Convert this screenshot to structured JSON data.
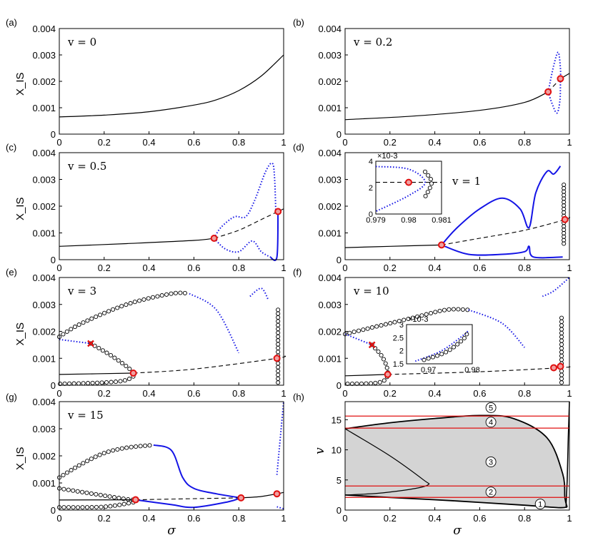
{
  "chart_data": [
    {
      "id": "a",
      "type": "line",
      "tag": "(a)",
      "param": "v = 0",
      "ylabel": "X_IS",
      "xlim": [
        0,
        1
      ],
      "ylim": [
        0,
        0.004
      ],
      "xticks": [
        "0",
        "0.2",
        "0.4",
        "0.6",
        "0.8",
        "1"
      ],
      "yticks": [
        "0",
        "0.001",
        "0.002",
        "0.003",
        "0.004"
      ],
      "stable": [
        [
          0,
          0.00065
        ],
        [
          0.2,
          0.00072
        ],
        [
          0.4,
          0.00085
        ],
        [
          0.6,
          0.0011
        ],
        [
          0.7,
          0.0013
        ],
        [
          0.8,
          0.00165
        ],
        [
          0.9,
          0.0022
        ],
        [
          1,
          0.003
        ]
      ]
    },
    {
      "id": "b",
      "type": "line",
      "tag": "(b)",
      "param": "v = 0.2",
      "ylabel": "",
      "xlim": [
        0,
        1
      ],
      "ylim": [
        0,
        0.004
      ],
      "xticks": [
        "0",
        "0.2",
        "0.4",
        "0.6",
        "0.8",
        "1"
      ],
      "yticks": [
        "0",
        "0.001",
        "0.002",
        "0.003",
        "0.004"
      ],
      "stable": [
        [
          0,
          0.00055
        ],
        [
          0.3,
          0.00068
        ],
        [
          0.6,
          0.0009
        ],
        [
          0.8,
          0.0012
        ],
        [
          0.905,
          0.0016
        ]
      ],
      "unstable": [
        [
          0.905,
          0.0016
        ],
        [
          0.96,
          0.0021
        ]
      ],
      "stable2": [
        [
          0.96,
          0.0021
        ],
        [
          1,
          0.0023
        ]
      ],
      "hopf": [
        [
          0.905,
          0.0016
        ],
        [
          0.96,
          0.0021
        ]
      ],
      "blue_dotted": [
        [
          [
            0.905,
            0.0016
          ],
          [
            0.93,
            0.0026
          ],
          [
            0.95,
            0.0031
          ],
          [
            0.96,
            0.0025
          ],
          [
            0.96,
            0.0021
          ]
        ],
        [
          [
            0.905,
            0.0016
          ],
          [
            0.925,
            0.0011
          ],
          [
            0.945,
            0.0008
          ],
          [
            0.958,
            0.0013
          ],
          [
            0.96,
            0.0021
          ]
        ]
      ]
    },
    {
      "id": "c",
      "type": "line",
      "tag": "(c)",
      "param": "v = 0.5",
      "ylabel": "X_IS",
      "xlim": [
        0,
        1
      ],
      "ylim": [
        0,
        0.004
      ],
      "xticks": [
        "0",
        "0.2",
        "0.4",
        "0.6",
        "0.8",
        "1"
      ],
      "yticks": [
        "0",
        "0.001",
        "0.002",
        "0.003",
        "0.004"
      ],
      "stable": [
        [
          0,
          0.0005
        ],
        [
          0.3,
          0.0006
        ],
        [
          0.6,
          0.00072
        ],
        [
          0.69,
          0.0008
        ]
      ],
      "unstable": [
        [
          0.69,
          0.0008
        ],
        [
          0.8,
          0.0011
        ],
        [
          0.9,
          0.0015
        ],
        [
          0.975,
          0.0018
        ],
        [
          1,
          0.0019
        ]
      ],
      "hopf": [
        [
          0.69,
          0.0008
        ],
        [
          0.975,
          0.0018
        ]
      ],
      "blue_dotted": [
        [
          [
            0.69,
            0.0008
          ],
          [
            0.72,
            0.0012
          ],
          [
            0.78,
            0.0016
          ],
          [
            0.83,
            0.0016
          ],
          [
            0.87,
            0.0022
          ],
          [
            0.92,
            0.0033
          ],
          [
            0.95,
            0.0036
          ],
          [
            0.96,
            0.003
          ],
          [
            0.965,
            0.0018
          ]
        ],
        [
          [
            0.69,
            0.0008
          ],
          [
            0.74,
            0.0004
          ],
          [
            0.8,
            0.0003
          ],
          [
            0.86,
            0.0007
          ],
          [
            0.9,
            0.0003
          ],
          [
            0.94,
            0.0001
          ]
        ]
      ],
      "blue_solid": [
        [
          [
            0.94,
            0.0001
          ],
          [
            0.97,
            0.0001
          ],
          [
            0.975,
            0.0018
          ]
        ]
      ]
    },
    {
      "id": "d",
      "type": "line",
      "tag": "(d)",
      "param": "v = 1",
      "ylabel": "",
      "xlim": [
        0,
        1
      ],
      "ylim": [
        0,
        0.004
      ],
      "xticks": [
        "0",
        "0.2",
        "0.4",
        "0.6",
        "0.8",
        "1"
      ],
      "yticks": [
        "0",
        "0.001",
        "0.002",
        "0.003",
        "0.004"
      ],
      "stable": [
        [
          0,
          0.00045
        ],
        [
          0.2,
          0.0005
        ],
        [
          0.43,
          0.00055
        ]
      ],
      "unstable": [
        [
          0.43,
          0.00055
        ],
        [
          0.6,
          0.0008
        ],
        [
          0.8,
          0.0011
        ],
        [
          0.98,
          0.0015
        ],
        [
          1,
          0.0016
        ]
      ],
      "hopf": [
        [
          0.43,
          0.00055
        ],
        [
          0.98,
          0.0015
        ]
      ],
      "blue_solid": [
        [
          [
            0.43,
            0.00055
          ],
          [
            0.5,
            0.0012
          ],
          [
            0.6,
            0.0019
          ],
          [
            0.7,
            0.0023
          ],
          [
            0.78,
            0.0019
          ],
          [
            0.82,
            0.0012
          ],
          [
            0.85,
            0.0025
          ],
          [
            0.9,
            0.0033
          ],
          [
            0.93,
            0.0032
          ],
          [
            0.96,
            0.0035
          ]
        ],
        [
          [
            0.43,
            0.00055
          ],
          [
            0.55,
            0.0002
          ],
          [
            0.7,
            0.0002
          ],
          [
            0.8,
            0.0003
          ],
          [
            0.82,
            0.0005
          ],
          [
            0.84,
            0.0001
          ],
          [
            0.97,
            0.0001
          ]
        ]
      ],
      "circles": {
        "x": 0.975,
        "ymin": 0.0006,
        "ymax": 0.0028,
        "count": 18
      },
      "inset": {
        "xlim": [
          0.979,
          0.981
        ],
        "ylim": [
          0,
          4
        ],
        "xticks": [
          "0.979",
          "0.98",
          "0.981"
        ],
        "yticks": [
          "0",
          "2",
          "4"
        ],
        "exponent": "×10-3"
      }
    },
    {
      "id": "e",
      "type": "line",
      "tag": "(e)",
      "param": "v = 3",
      "ylabel": "X_IS",
      "xlim": [
        0,
        1
      ],
      "ylim": [
        0,
        0.004
      ],
      "xticks": [
        "0",
        "0.2",
        "0.4",
        "0.6",
        "0.8",
        "1"
      ],
      "yticks": [
        "0",
        "0.001",
        "0.002",
        "0.003",
        "0.004"
      ],
      "stable": [
        [
          0,
          0.0004
        ],
        [
          0.33,
          0.00045
        ]
      ],
      "unstable": [
        [
          0.33,
          0.00045
        ],
        [
          0.6,
          0.0006
        ],
        [
          0.97,
          0.001
        ],
        [
          1,
          0.0011
        ]
      ],
      "hopf": [
        [
          0.33,
          0.00045
        ],
        [
          0.97,
          0.001
        ]
      ],
      "redx": [
        [
          0.14,
          0.00155
        ]
      ],
      "circle_arcs": [
        [
          [
            0,
            0.0018
          ],
          [
            0.1,
            0.0023
          ],
          [
            0.3,
            0.003
          ],
          [
            0.5,
            0.0034
          ],
          [
            0.58,
            0.0034
          ]
        ],
        [
          [
            0.14,
            0.00155
          ],
          [
            0.25,
            0.001
          ],
          [
            0.33,
            0.00045
          ],
          [
            0.3,
            0.0002
          ],
          [
            0.2,
            0.0001
          ],
          [
            0,
            5e-05
          ]
        ]
      ],
      "blue_dotted": [
        [
          [
            0,
            0.0017
          ],
          [
            0.14,
            0.00155
          ]
        ],
        [
          [
            0.58,
            0.0034
          ],
          [
            0.7,
            0.0028
          ],
          [
            0.8,
            0.0012
          ]
        ],
        [
          [
            0.85,
            0.0033
          ],
          [
            0.9,
            0.0036
          ],
          [
            0.93,
            0.0032
          ]
        ]
      ],
      "circles": {
        "x": 0.975,
        "ymin": 0.0001,
        "ymax": 0.0028,
        "count": 20
      }
    },
    {
      "id": "f",
      "type": "line",
      "tag": "(f)",
      "param": "v = 10",
      "ylabel": "",
      "xlim": [
        0,
        1
      ],
      "ylim": [
        0,
        0.004
      ],
      "xticks": [
        "0",
        "0.2",
        "0.4",
        "0.6",
        "0.8",
        "1"
      ],
      "yticks": [
        "0",
        "0.001",
        "0.002",
        "0.003",
        "0.004"
      ],
      "stable": [
        [
          0,
          0.00035
        ],
        [
          0.19,
          0.0004
        ]
      ],
      "unstable": [
        [
          0.19,
          0.0004
        ],
        [
          0.6,
          0.0005
        ],
        [
          0.96,
          0.00065
        ],
        [
          1,
          0.0007
        ]
      ],
      "hopf": [
        [
          0.19,
          0.0004
        ],
        [
          0.93,
          0.00065
        ],
        [
          0.96,
          0.0007
        ]
      ],
      "redx": [
        [
          0.12,
          0.0015
        ]
      ],
      "circle_arcs": [
        [
          [
            0,
            0.0019
          ],
          [
            0.15,
            0.0022
          ],
          [
            0.3,
            0.0025
          ],
          [
            0.45,
            0.0028
          ],
          [
            0.55,
            0.0028
          ]
        ],
        [
          [
            0.12,
            0.0015
          ],
          [
            0.17,
            0.001
          ],
          [
            0.19,
            0.0004
          ],
          [
            0.15,
            0.0001
          ],
          [
            0,
            5e-05
          ]
        ]
      ],
      "blue_dotted": [
        [
          [
            0,
            0.0019
          ],
          [
            0.12,
            0.0015
          ]
        ],
        [
          [
            0.55,
            0.0028
          ],
          [
            0.7,
            0.0023
          ],
          [
            0.8,
            0.0014
          ]
        ],
        [
          [
            0.88,
            0.0033
          ],
          [
            0.93,
            0.0035
          ],
          [
            1,
            0.004
          ]
        ]
      ],
      "circles": {
        "x": 0.965,
        "ymin": 0.0001,
        "ymax": 0.0025,
        "count": 18
      },
      "inset": {
        "xlim": [
          0.965,
          0.98
        ],
        "ylim": [
          1.5,
          3
        ],
        "xticks": [
          "0.97",
          "0.98"
        ],
        "yticks": [
          "1.5",
          "2",
          "2.5",
          "3"
        ],
        "exponent": "×10-3"
      }
    },
    {
      "id": "g",
      "type": "line",
      "tag": "(g)",
      "param": "v = 15",
      "ylabel": "X_IS",
      "xlim": [
        0,
        1
      ],
      "ylim": [
        0,
        0.004
      ],
      "xticks": [
        "0",
        "0.2",
        "0.4",
        "0.6",
        "0.8",
        "1"
      ],
      "yticks": [
        "0",
        "0.001",
        "0.002",
        "0.003",
        "0.004"
      ],
      "xlabel": "σ",
      "stable": [
        [
          0,
          0.00037
        ],
        [
          0.34,
          0.00038
        ]
      ],
      "unstable": [
        [
          0.34,
          0.00038
        ],
        [
          0.6,
          0.00042
        ],
        [
          0.81,
          0.00045
        ]
      ],
      "stable2": [
        [
          0.81,
          0.00045
        ],
        [
          0.9,
          0.0005
        ],
        [
          0.97,
          0.0006
        ],
        [
          1,
          0.00065
        ]
      ],
      "hopf": [
        [
          0.34,
          0.00038
        ],
        [
          0.81,
          0.00045
        ],
        [
          0.97,
          0.0006
        ]
      ],
      "circle_arcs": [
        [
          [
            0,
            0.0012
          ],
          [
            0.1,
            0.0017
          ],
          [
            0.2,
            0.0021
          ],
          [
            0.3,
            0.0023
          ],
          [
            0.42,
            0.0024
          ]
        ],
        [
          [
            0,
            0.0008
          ],
          [
            0.15,
            0.0006
          ],
          [
            0.3,
            0.0004
          ],
          [
            0.34,
            0.00038
          ]
        ],
        [
          [
            0,
            0.0001
          ],
          [
            0.2,
            0.00012
          ],
          [
            0.34,
            0.0003
          ]
        ]
      ],
      "blue_solid": [
        [
          [
            0.42,
            0.0024
          ],
          [
            0.5,
            0.0022
          ],
          [
            0.55,
            0.0012
          ],
          [
            0.6,
            0.0008
          ],
          [
            0.7,
            0.0006
          ],
          [
            0.81,
            0.00045
          ]
        ],
        [
          [
            0.34,
            0.00038
          ],
          [
            0.5,
            0.0002
          ],
          [
            0.6,
            0.0001
          ],
          [
            0.75,
            0.0003
          ],
          [
            0.81,
            0.00045
          ]
        ]
      ],
      "blue_dotted": [
        [
          [
            0.97,
            0.0013
          ],
          [
            1,
            0.004
          ]
        ],
        [
          [
            0.97,
            0.00012
          ],
          [
            1,
            5e-05
          ]
        ]
      ]
    },
    {
      "id": "h",
      "type": "area",
      "tag": "(h)",
      "ylabel": "v",
      "xlabel": "σ",
      "xlim": [
        0,
        1
      ],
      "ylim": [
        0,
        18
      ],
      "xticks": [
        "0",
        "0.2",
        "0.4",
        "0.6",
        "0.8",
        "1"
      ],
      "yticks": [
        "0",
        "5",
        "10",
        "15"
      ],
      "region_upper": [
        [
          0,
          13.5
        ],
        [
          0.2,
          14.5
        ],
        [
          0.4,
          15.2
        ],
        [
          0.6,
          15.7
        ],
        [
          0.75,
          15.2
        ],
        [
          0.9,
          12
        ],
        [
          0.97,
          6
        ],
        [
          0.98,
          2
        ],
        [
          0.99,
          0.5
        ]
      ],
      "region_lower": [
        [
          0,
          2.5
        ],
        [
          0.2,
          2.1
        ],
        [
          0.5,
          1.5
        ],
        [
          0.8,
          0.8
        ],
        [
          0.95,
          0.4
        ],
        [
          0.99,
          0.5
        ]
      ],
      "inner_curve": [
        [
          0,
          13.5
        ],
        [
          0.2,
          9
        ],
        [
          0.35,
          5
        ],
        [
          0.37,
          4.2
        ],
        [
          0.3,
          3.5
        ],
        [
          0.15,
          2.8
        ],
        [
          0,
          2.5
        ]
      ],
      "right_curve": [
        [
          0.985,
          0.6
        ],
        [
          0.99,
          5
        ],
        [
          0.995,
          12
        ],
        [
          1,
          18
        ]
      ],
      "red_lines": [
        2.1,
        4,
        13.6,
        15.6
      ],
      "regions": [
        {
          "label": "1",
          "x": 0.87,
          "y": 1
        },
        {
          "label": "2",
          "x": 0.65,
          "y": 3
        },
        {
          "label": "3",
          "x": 0.65,
          "y": 8
        },
        {
          "label": "4",
          "x": 0.65,
          "y": 14.6
        },
        {
          "label": "5",
          "x": 0.65,
          "y": 17
        }
      ]
    }
  ]
}
